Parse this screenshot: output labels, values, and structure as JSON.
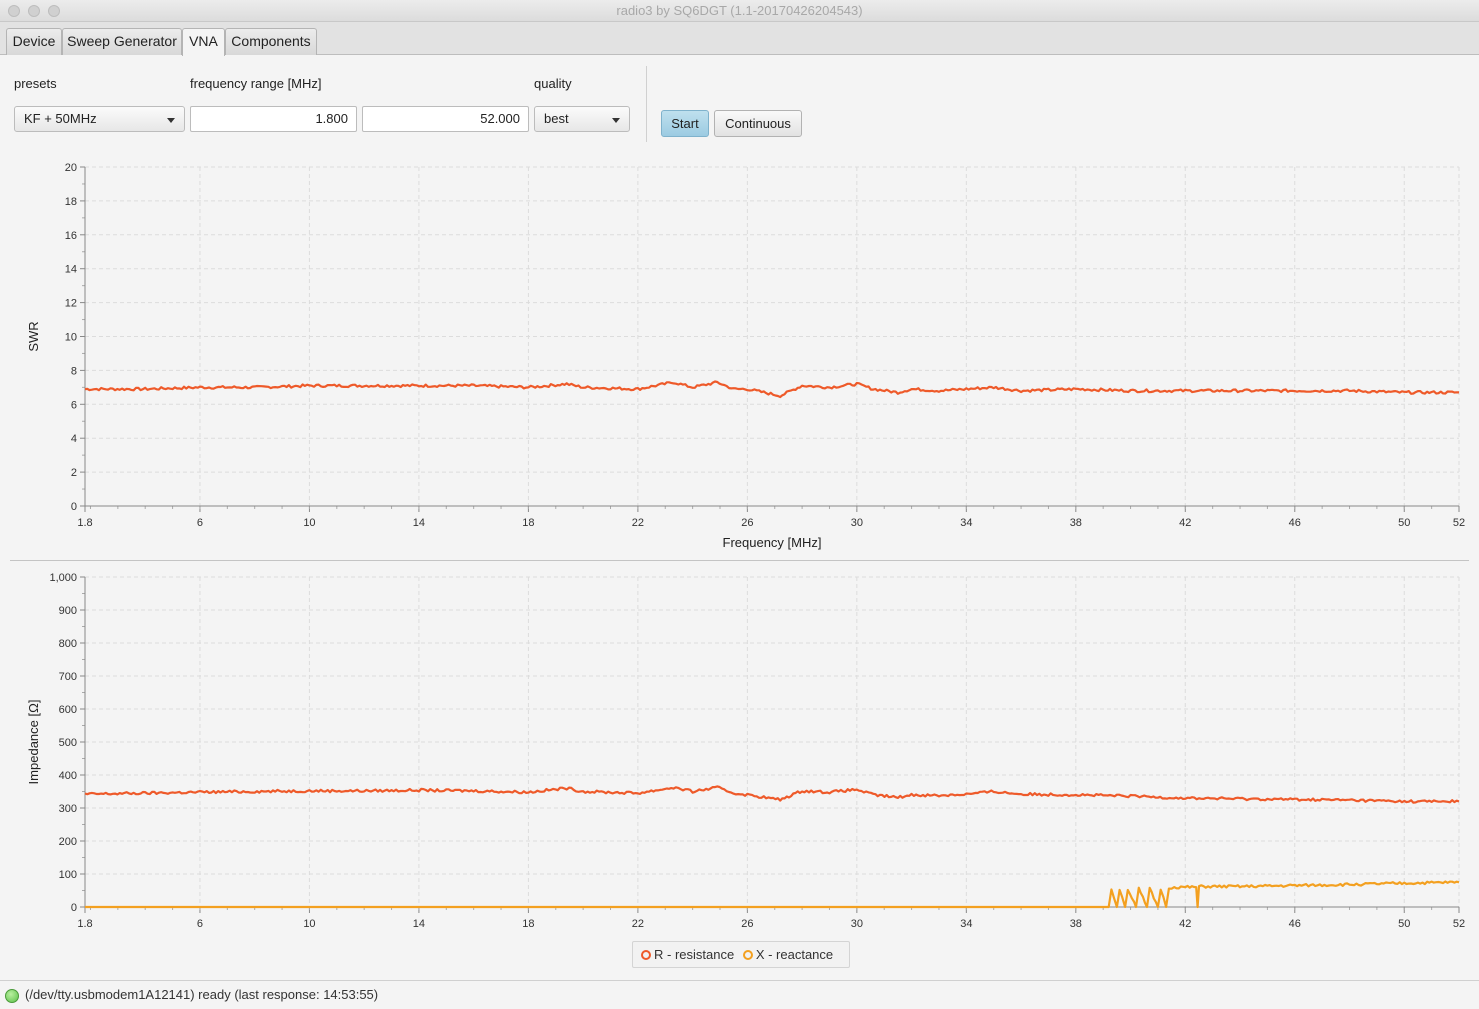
{
  "window": {
    "title": "radio3 by SQ6DGT (1.1-20170426204543)"
  },
  "tabs": [
    {
      "label": "Device"
    },
    {
      "label": "Sweep Generator"
    },
    {
      "label": "VNA"
    },
    {
      "label": "Components"
    }
  ],
  "active_tab": "VNA",
  "controls": {
    "presets_label": "presets",
    "presets_value": "KF + 50MHz",
    "frequency_label": "frequency range [MHz]",
    "freq_start": "1.800",
    "freq_end": "52.000",
    "quality_label": "quality",
    "quality_value": "best",
    "start_button": "Start",
    "continuous_button": "Continuous"
  },
  "colors": {
    "r_series": "#ee5a2a",
    "x_series": "#f3a020",
    "grid": "#dcdcdc"
  },
  "chart_data": [
    {
      "type": "line",
      "xlabel": "Frequency [MHz]",
      "ylabel": "SWR",
      "xlim": [
        1.8,
        52
      ],
      "ylim": [
        0,
        20
      ],
      "x_ticks": [
        "1.8",
        "6",
        "10",
        "14",
        "18",
        "22",
        "26",
        "30",
        "34",
        "38",
        "42",
        "46",
        "50",
        "52"
      ],
      "y_ticks": [
        "0",
        "2",
        "4",
        "6",
        "8",
        "10",
        "12",
        "14",
        "16",
        "18",
        "20"
      ],
      "grid": true,
      "series": [
        {
          "x": [
            1.8,
            4,
            6,
            8,
            10,
            12,
            14,
            16,
            18,
            19.4,
            20,
            22,
            23.3,
            24,
            24.9,
            25.5,
            26,
            27.2,
            28,
            29,
            30,
            30.6,
            31.5,
            32,
            33,
            34,
            35,
            36,
            38,
            40,
            42,
            44,
            46,
            48,
            50,
            52
          ],
          "y": [
            6.9,
            6.9,
            7.0,
            7.0,
            7.1,
            7.1,
            7.1,
            7.1,
            7.0,
            7.2,
            7.0,
            6.9,
            7.3,
            7.0,
            7.3,
            6.9,
            6.9,
            6.5,
            7.1,
            7.0,
            7.2,
            6.9,
            6.7,
            6.9,
            6.8,
            6.9,
            7.0,
            6.8,
            6.9,
            6.8,
            6.8,
            6.8,
            6.8,
            6.8,
            6.7,
            6.7
          ]
        }
      ]
    },
    {
      "type": "line",
      "xlabel": "",
      "ylabel": "Impedance [Ω]",
      "xlim": [
        1.8,
        52
      ],
      "ylim": [
        0,
        1000
      ],
      "x_ticks": [
        "1.8",
        "6",
        "10",
        "14",
        "18",
        "22",
        "26",
        "30",
        "34",
        "38",
        "42",
        "46",
        "50",
        "52"
      ],
      "y_ticks": [
        "0",
        "100",
        "200",
        "300",
        "400",
        "500",
        "600",
        "700",
        "800",
        "900",
        "1,000"
      ],
      "grid": true,
      "legend_position": "bottom",
      "series": [
        {
          "name": "R - resistance",
          "x": [
            1.8,
            4,
            6,
            8,
            10,
            12,
            14,
            16,
            18,
            19.4,
            20,
            22,
            23.3,
            24,
            24.9,
            25.5,
            26,
            27.2,
            28,
            29,
            30,
            30.6,
            31.5,
            32,
            33,
            34,
            35,
            36,
            38,
            40,
            42,
            44,
            46,
            48,
            50,
            52
          ],
          "y": [
            342,
            345,
            348,
            350,
            352,
            352,
            354,
            352,
            348,
            360,
            350,
            345,
            362,
            350,
            362,
            345,
            340,
            325,
            352,
            348,
            356,
            340,
            332,
            340,
            338,
            342,
            350,
            342,
            340,
            336,
            330,
            328,
            326,
            324,
            320,
            320
          ]
        },
        {
          "name": "X - reactance",
          "x": [
            1.8,
            10,
            20,
            30,
            39.2,
            39.3,
            39.5,
            39.6,
            39.8,
            39.9,
            40.2,
            40.3,
            40.6,
            40.7,
            41.0,
            41.1,
            41.3,
            41.4,
            41.6,
            42.0,
            42.4,
            42.45,
            42.5,
            44,
            46,
            48,
            50,
            52
          ],
          "y": [
            0,
            0,
            0,
            0,
            0,
            55,
            0,
            55,
            0,
            55,
            0,
            55,
            0,
            55,
            0,
            55,
            0,
            58,
            60,
            60,
            60,
            0,
            62,
            62,
            65,
            68,
            72,
            75
          ]
        }
      ]
    }
  ],
  "status": {
    "text": "(/dev/tty.usbmodem1A12141) ready (last response: 14:53:55)"
  }
}
